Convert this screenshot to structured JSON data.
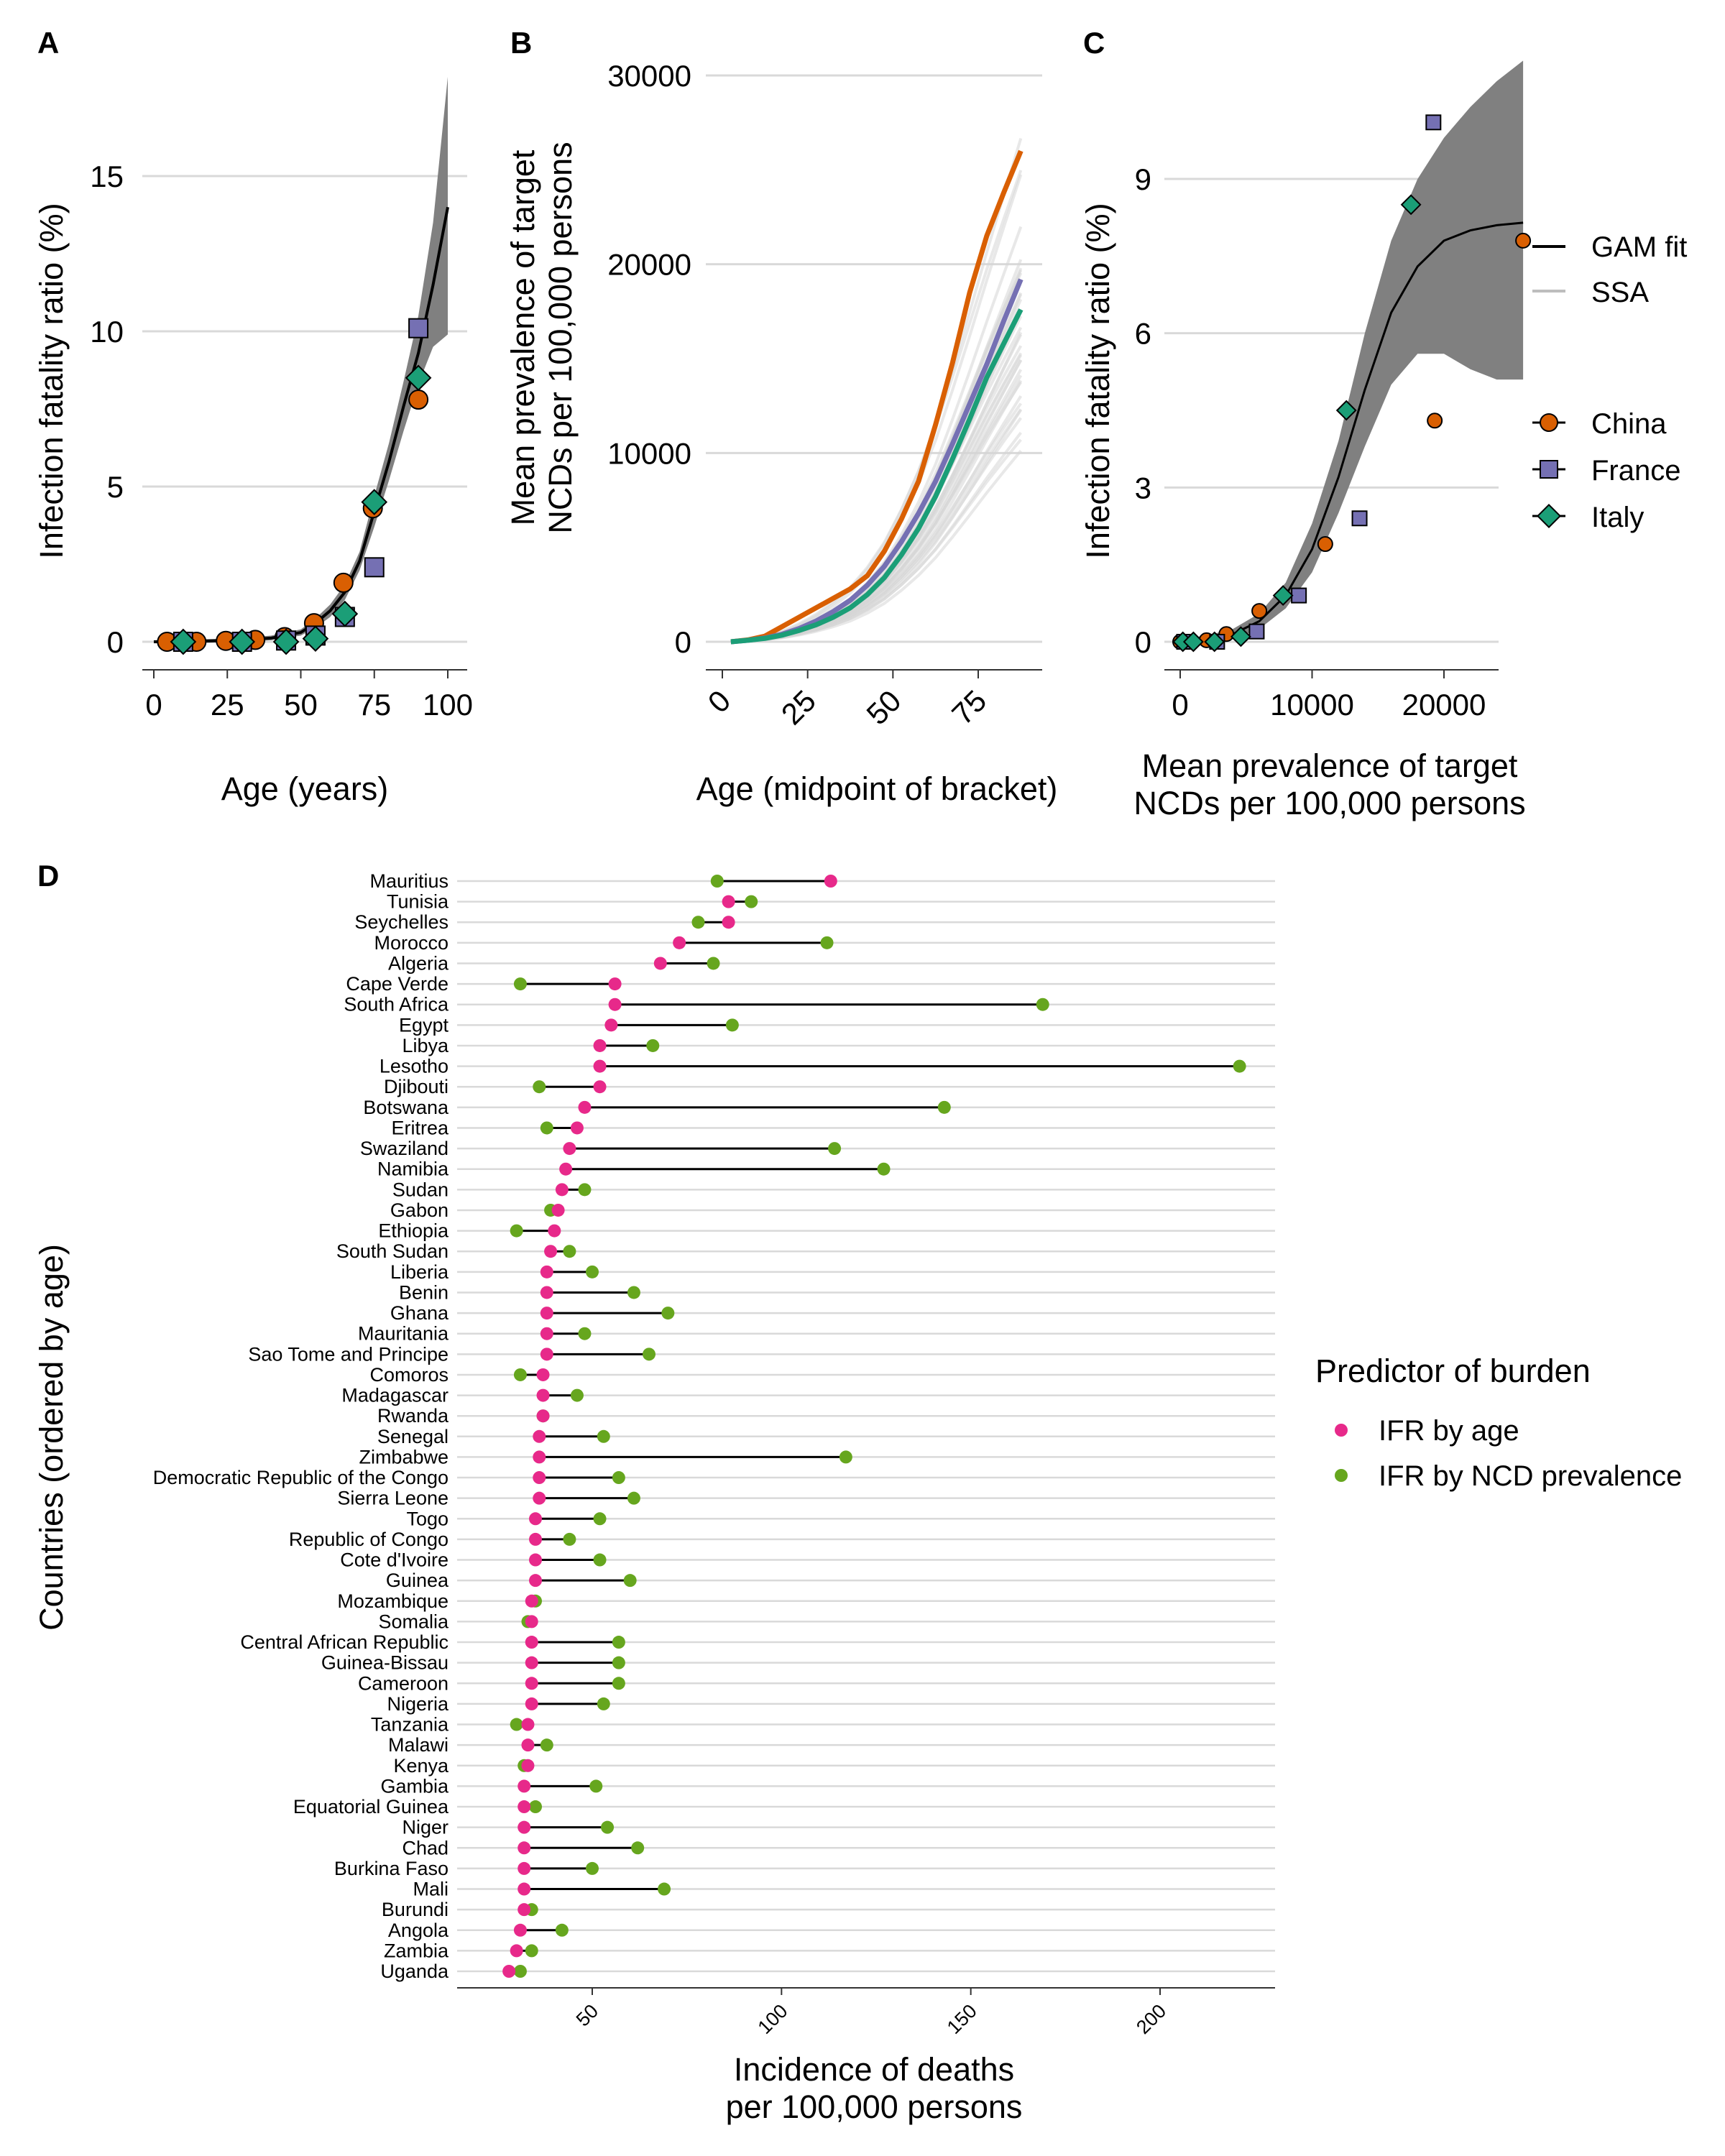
{
  "panel_labels": {
    "a": "A",
    "b": "B",
    "c": "C",
    "d": "D"
  },
  "legend_top": {
    "lines": [
      {
        "label": "GAM fit",
        "color": "#000000"
      },
      {
        "label": "SSA",
        "color": "#bdbdbd"
      }
    ],
    "countries": [
      {
        "label": "China",
        "color": "#D95F02",
        "shape": "circle"
      },
      {
        "label": "France",
        "color": "#7570B3",
        "shape": "square"
      },
      {
        "label": "Italy",
        "color": "#1B9E77",
        "shape": "diamond"
      }
    ]
  },
  "legend_bottom": {
    "title": "Predictor of burden",
    "items": [
      {
        "label": "IFR by age",
        "color": "#E7298A"
      },
      {
        "label": "IFR by NCD prevalence",
        "color": "#66A61E"
      }
    ]
  },
  "chart_data": [
    {
      "id": "A",
      "type": "scatter",
      "xlabel": "Age (years)",
      "ylabel": "Infection fatality ratio (%)",
      "xlim": [
        0,
        100
      ],
      "ylim": [
        0,
        18
      ],
      "xticks": [
        "0",
        "25",
        "50",
        "75",
        "100"
      ],
      "yticks": [
        "0",
        "5",
        "10",
        "15"
      ],
      "gam_fit": {
        "x": [
          0,
          10,
          20,
          30,
          40,
          50,
          55,
          60,
          65,
          70,
          75,
          80,
          85,
          90,
          95,
          100
        ],
        "y": [
          0,
          0.01,
          0.03,
          0.06,
          0.12,
          0.3,
          0.6,
          1.0,
          1.6,
          2.6,
          4.2,
          5.8,
          7.6,
          9.3,
          11.5,
          14.0
        ],
        "lower": [
          -0.05,
          -0.05,
          -0.03,
          0.0,
          0.05,
          0.2,
          0.45,
          0.8,
          1.35,
          2.3,
          3.7,
          5.2,
          6.8,
          8.3,
          9.5,
          9.9
        ],
        "upper": [
          0.05,
          0.07,
          0.09,
          0.12,
          0.2,
          0.4,
          0.75,
          1.2,
          1.85,
          2.9,
          4.7,
          6.4,
          8.4,
          10.5,
          13.5,
          18.2
        ]
      },
      "series": [
        {
          "name": "China",
          "x": [
            4.5,
            14.5,
            24.5,
            34.5,
            44.5,
            54.5,
            64.5,
            74.5,
            90
          ],
          "y": [
            0.0,
            0.0,
            0.03,
            0.06,
            0.15,
            0.6,
            1.9,
            4.3,
            7.8
          ]
        },
        {
          "name": "France",
          "x": [
            10,
            30,
            45,
            55,
            65,
            75,
            90
          ],
          "y": [
            0.0,
            0.0,
            0.04,
            0.2,
            0.8,
            2.4,
            10.1
          ]
        },
        {
          "name": "Italy",
          "x": [
            10,
            30,
            45,
            55,
            65,
            75,
            90
          ],
          "y": [
            0.0,
            0.0,
            0.0,
            0.1,
            0.9,
            4.5,
            8.5
          ]
        }
      ]
    },
    {
      "id": "B",
      "type": "line",
      "xlabel": "Age (midpoint of bracket)",
      "ylabel": "Mean prevalence of target NCDs per 100,000 persons",
      "xlim": [
        0,
        90
      ],
      "ylim": [
        0,
        30000
      ],
      "xticks": [
        "0",
        "25",
        "50",
        "75"
      ],
      "yticks": [
        "0",
        "10000",
        "20000",
        "30000"
      ],
      "x": [
        2.5,
        7.5,
        12.5,
        17.5,
        22.5,
        27.5,
        32.5,
        37.5,
        42.5,
        47.5,
        52.5,
        57.5,
        62.5,
        67.5,
        72.5,
        77.5,
        82.5,
        87.5
      ],
      "ssa_note": "SSA",
      "ssa_scales": [
        0.55,
        0.6,
        0.62,
        0.65,
        0.67,
        0.69,
        0.7,
        0.72,
        0.74,
        0.75,
        0.77,
        0.78,
        0.8,
        0.82,
        0.84,
        0.85,
        0.87,
        0.89,
        0.9,
        0.92,
        0.93,
        0.95,
        0.97,
        0.99,
        1.0,
        1.02,
        1.05,
        1.08,
        1.12,
        1.18,
        1.25,
        1.35,
        1.5
      ],
      "series": [
        {
          "name": "China",
          "values": [
            0,
            100,
            300,
            800,
            1300,
            1800,
            2300,
            2800,
            3500,
            4800,
            6500,
            8500,
            11500,
            14800,
            18500,
            21500,
            23800,
            26000
          ]
        },
        {
          "name": "France",
          "values": [
            0,
            80,
            200,
            400,
            700,
            1100,
            1600,
            2200,
            3000,
            4000,
            5300,
            6800,
            8500,
            10500,
            12600,
            14700,
            17000,
            19200
          ]
        },
        {
          "name": "Italy",
          "values": [
            0,
            80,
            180,
            350,
            600,
            900,
            1300,
            1800,
            2500,
            3400,
            4600,
            6000,
            7700,
            9700,
            11800,
            14000,
            15800,
            17600
          ]
        }
      ]
    },
    {
      "id": "C",
      "type": "scatter",
      "xlabel": "Mean prevalence of target NCDs per 100,000 persons",
      "ylabel": "Infection fatality ratio (%)",
      "xlim": [
        -1000,
        27000
      ],
      "ylim": [
        0,
        10.5
      ],
      "xticks": [
        "0",
        "10000",
        "20000"
      ],
      "yticks": [
        "0",
        "3",
        "6",
        "9"
      ],
      "gam_fit": {
        "x": [
          0,
          2000,
          4000,
          6000,
          8000,
          10000,
          12000,
          14000,
          16000,
          18000,
          20000,
          22000,
          24000,
          26000
        ],
        "y": [
          0.0,
          0.05,
          0.15,
          0.4,
          0.9,
          1.8,
          3.2,
          4.9,
          6.4,
          7.3,
          7.8,
          8.0,
          8.1,
          8.15
        ],
        "lower": [
          -0.05,
          -0.02,
          0.05,
          0.25,
          0.65,
          1.35,
          2.5,
          3.8,
          5.0,
          5.6,
          5.6,
          5.3,
          5.1,
          5.1
        ],
        "upper": [
          0.05,
          0.12,
          0.25,
          0.55,
          1.15,
          2.3,
          3.9,
          6.0,
          7.8,
          9.0,
          9.8,
          10.4,
          10.9,
          11.3
        ]
      },
      "series": [
        {
          "name": "China",
          "x": [
            0,
            400,
            2000,
            3500,
            6000,
            11000,
            19300,
            26000
          ],
          "y": [
            0.0,
            0.0,
            0.03,
            0.15,
            0.6,
            1.9,
            4.3,
            7.8
          ]
        },
        {
          "name": "France",
          "x": [
            300,
            2800,
            5800,
            9000,
            13600,
            19200
          ],
          "y": [
            0.0,
            0.0,
            0.2,
            0.9,
            2.4,
            10.1
          ]
        },
        {
          "name": "Italy",
          "x": [
            200,
            1000,
            2600,
            4600,
            7800,
            12600,
            17500
          ],
          "y": [
            0.0,
            0.0,
            0.0,
            0.1,
            0.9,
            4.5,
            8.5
          ]
        }
      ]
    },
    {
      "id": "D",
      "type": "dumbbell",
      "xlabel": "Incidence of deaths per 100,000 persons",
      "ylabel": "Countries (ordered by age)",
      "xlim": [
        15,
        230
      ],
      "xticks": [
        "50",
        "100",
        "150",
        "200"
      ],
      "countries": [
        "Mauritius",
        "Tunisia",
        "Seychelles",
        "Morocco",
        "Algeria",
        "Cape Verde",
        "South Africa",
        "Egypt",
        "Libya",
        "Lesotho",
        "Djibouti",
        "Botswana",
        "Eritrea",
        "Swaziland",
        "Namibia",
        "Sudan",
        "Gabon",
        "Ethiopia",
        "South Sudan",
        "Liberia",
        "Benin",
        "Ghana",
        "Mauritania",
        "Sao Tome and Principe",
        "Comoros",
        "Madagascar",
        "Rwanda",
        "Senegal",
        "Zimbabwe",
        "Democratic Republic of the Congo",
        "Sierra Leone",
        "Togo",
        "Republic of Congo",
        "Cote d'Ivoire",
        "Guinea",
        "Mozambique",
        "Somalia",
        "Central African Republic",
        "Guinea-Bissau",
        "Cameroon",
        "Nigeria",
        "Tanzania",
        "Malawi",
        "Kenya",
        "Gambia",
        "Equatorial Guinea",
        "Niger",
        "Chad",
        "Burkina Faso",
        "Mali",
        "Burundi",
        "Angola",
        "Zambia",
        "Uganda"
      ],
      "series": [
        {
          "name": "IFR by age",
          "values": [
            113,
            86,
            86,
            73,
            68,
            56,
            56,
            55,
            52,
            52,
            52,
            48,
            46,
            44,
            43,
            42,
            41,
            40,
            39,
            38,
            38,
            38,
            38,
            38,
            37,
            37,
            37,
            36,
            36,
            36,
            36,
            35,
            35,
            35,
            35,
            34,
            34,
            34,
            34,
            34,
            34,
            33,
            33,
            33,
            32,
            32,
            32,
            32,
            32,
            32,
            32,
            31,
            30,
            28
          ]
        },
        {
          "name": "IFR by NCD prevalence",
          "values": [
            83,
            92,
            78,
            112,
            82,
            31,
            169,
            87,
            66,
            221,
            36,
            143,
            38,
            114,
            127,
            48,
            39,
            30,
            44,
            50,
            61,
            70,
            48,
            65,
            31,
            46,
            37,
            53,
            117,
            57,
            61,
            52,
            44,
            52,
            60,
            35,
            33,
            57,
            57,
            57,
            53,
            30,
            38,
            32,
            51,
            35,
            54,
            62,
            50,
            69,
            34,
            42,
            34,
            31
          ]
        }
      ]
    }
  ]
}
